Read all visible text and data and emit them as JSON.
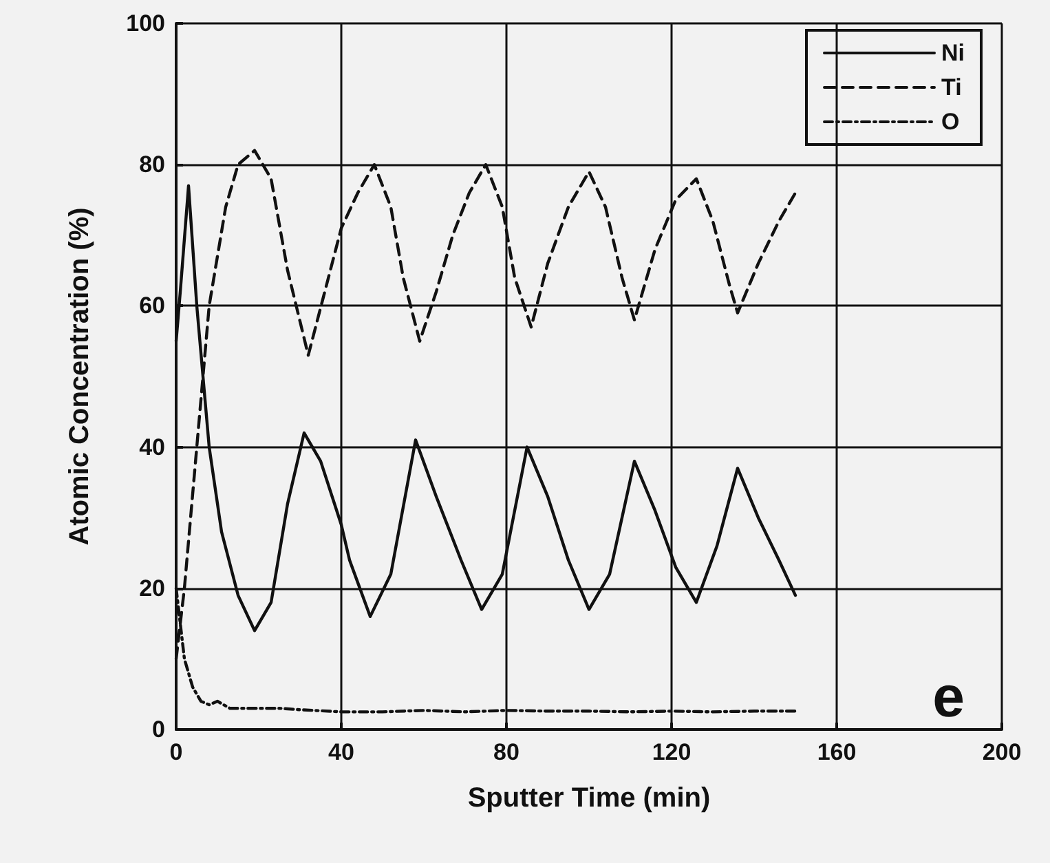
{
  "chart_data": {
    "type": "line",
    "xlabel": "Sputter Time (min)",
    "ylabel": "Atomic Concentration (%)",
    "xlim": [
      0,
      200
    ],
    "xticks": [
      0,
      40,
      80,
      120,
      160,
      200
    ],
    "ylim": [
      0,
      100
    ],
    "yticks": [
      0,
      20,
      40,
      60,
      80,
      100
    ],
    "grid": true,
    "legend": "top right",
    "marker": "none",
    "annotations": [
      "e"
    ],
    "series": [
      {
        "name": "Ni",
        "color": "#111111",
        "line_style": "solid",
        "x": [
          0,
          1,
          3,
          5,
          8,
          11,
          15,
          19,
          23,
          27,
          31,
          35,
          40,
          42,
          47,
          52,
          58,
          63,
          69,
          74,
          79,
          85,
          90,
          95,
          100,
          105,
          111,
          116,
          121,
          126,
          131,
          136,
          141,
          146,
          150
        ],
        "values": [
          55,
          62,
          77,
          60,
          40,
          28,
          19,
          14,
          18,
          32,
          42,
          38,
          29,
          24,
          16,
          22,
          41,
          33,
          24,
          17,
          22,
          40,
          33,
          24,
          17,
          22,
          38,
          31,
          23,
          18,
          26,
          37,
          30,
          24,
          19
        ]
      },
      {
        "name": "Ti",
        "color": "#111111",
        "line_style": "dashed",
        "x": [
          0,
          2,
          5,
          8,
          12,
          15,
          19,
          23,
          27,
          32,
          36,
          40,
          44,
          48,
          52,
          55,
          59,
          63,
          67,
          71,
          75,
          79,
          82,
          86,
          90,
          95,
          100,
          104,
          108,
          111,
          116,
          121,
          126,
          130,
          134,
          136,
          141,
          146,
          150
        ],
        "values": [
          10,
          20,
          40,
          60,
          74,
          80,
          82,
          78,
          65,
          53,
          62,
          71,
          76,
          80,
          74,
          64,
          55,
          62,
          70,
          76,
          80,
          74,
          64,
          57,
          66,
          74,
          79,
          74,
          64,
          58,
          68,
          75,
          78,
          72,
          63,
          59,
          66,
          72,
          76
        ]
      },
      {
        "name": "O",
        "color": "#111111",
        "line_style": "dotted",
        "x": [
          0,
          2,
          4,
          6,
          8,
          10,
          13,
          16,
          20,
          25,
          30,
          40,
          50,
          60,
          70,
          80,
          90,
          100,
          110,
          120,
          130,
          140,
          150
        ],
        "values": [
          20,
          10,
          6,
          4,
          3.5,
          4,
          3,
          3,
          3,
          3,
          2.8,
          2.5,
          2.5,
          2.7,
          2.5,
          2.7,
          2.6,
          2.6,
          2.5,
          2.6,
          2.5,
          2.6,
          2.6
        ]
      }
    ]
  }
}
